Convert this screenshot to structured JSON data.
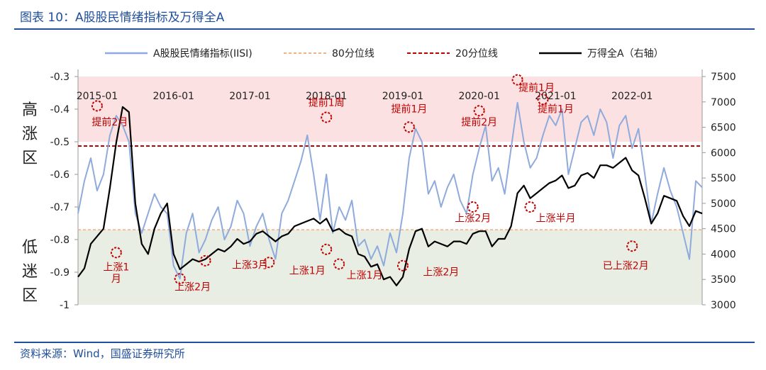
{
  "figure": {
    "title": "图表 10：A股股民情绪指标及万得全A",
    "source": "资料来源：Wind，国盛证券研究所"
  },
  "colors": {
    "iisi": "#8faadc",
    "threshold_80": "#f4b183",
    "threshold_20": "#c00000",
    "wind_a": "#000000",
    "high_zone": "#fbe1e1",
    "low_zone": "#e8eee4",
    "annotation": "#c00000",
    "title": "#1f4e9c"
  },
  "zones": {
    "high_label": "高涨区",
    "low_label": "低迷区",
    "high_range": [
      -0.5,
      -0.3
    ],
    "low_range": [
      -1.0,
      -0.77
    ]
  },
  "chart_data": {
    "type": "line",
    "legend": {
      "placement": "top",
      "entries": [
        "A股股民情绪指标(IISI)",
        "80分位线",
        "20分位线",
        "万得全A（右轴）"
      ]
    },
    "x_axis": {
      "range": [
        "2014-10",
        "2022-12"
      ],
      "tick_labels": [
        "2015-01",
        "2016-01",
        "2017-01",
        "2018-01",
        "2019-01",
        "2020-01",
        "2021-01",
        "2022-01"
      ]
    },
    "y_left": {
      "range": [
        -1.0,
        -0.3
      ],
      "ticks": [
        -1,
        -0.9,
        -0.8,
        -0.7,
        -0.6,
        -0.5,
        -0.4,
        -0.3
      ],
      "tick_labels": [
        "-1",
        "-0.9",
        "-0.8",
        "-0.7",
        "-0.6",
        "-0.5",
        "-0.4",
        "-0.3"
      ]
    },
    "y_right": {
      "range": [
        3000,
        7500
      ],
      "ticks": [
        3000,
        3500,
        4000,
        4500,
        5000,
        5500,
        6000,
        6500,
        7000,
        7500
      ],
      "tick_labels": [
        "3000",
        "3500",
        "4000",
        "4500",
        "5000",
        "5500",
        "6000",
        "6500",
        "7000",
        "7500"
      ]
    },
    "thresholds": {
      "p80": -0.77,
      "p20": -0.513
    },
    "series": [
      {
        "name": "A股股民情绪指标(IISI)",
        "axis": "left",
        "points": [
          [
            "2014-10",
            -0.72
          ],
          [
            "2014-11",
            -0.62
          ],
          [
            "2014-12",
            -0.55
          ],
          [
            "2015-01",
            -0.65
          ],
          [
            "2015-02",
            -0.6
          ],
          [
            "2015-03",
            -0.48
          ],
          [
            "2015-04",
            -0.42
          ],
          [
            "2015-05",
            -0.45
          ],
          [
            "2015-06",
            -0.5
          ],
          [
            "2015-07",
            -0.72
          ],
          [
            "2015-08",
            -0.78
          ],
          [
            "2015-09",
            -0.72
          ],
          [
            "2015-10",
            -0.66
          ],
          [
            "2015-11",
            -0.7
          ],
          [
            "2015-12",
            -0.72
          ],
          [
            "2016-01",
            -0.88
          ],
          [
            "2016-02",
            -0.92
          ],
          [
            "2016-03",
            -0.78
          ],
          [
            "2016-04",
            -0.72
          ],
          [
            "2016-05",
            -0.84
          ],
          [
            "2016-06",
            -0.8
          ],
          [
            "2016-07",
            -0.74
          ],
          [
            "2016-08",
            -0.7
          ],
          [
            "2016-09",
            -0.8
          ],
          [
            "2016-10",
            -0.76
          ],
          [
            "2016-11",
            -0.68
          ],
          [
            "2016-12",
            -0.72
          ],
          [
            "2017-01",
            -0.82
          ],
          [
            "2017-02",
            -0.76
          ],
          [
            "2017-03",
            -0.72
          ],
          [
            "2017-04",
            -0.8
          ],
          [
            "2017-05",
            -0.86
          ],
          [
            "2017-06",
            -0.72
          ],
          [
            "2017-07",
            -0.68
          ],
          [
            "2017-08",
            -0.62
          ],
          [
            "2017-09",
            -0.56
          ],
          [
            "2017-10",
            -0.48
          ],
          [
            "2017-11",
            -0.6
          ],
          [
            "2017-12",
            -0.74
          ],
          [
            "2018-01",
            -0.6
          ],
          [
            "2018-02",
            -0.78
          ],
          [
            "2018-03",
            -0.7
          ],
          [
            "2018-04",
            -0.74
          ],
          [
            "2018-05",
            -0.68
          ],
          [
            "2018-06",
            -0.82
          ],
          [
            "2018-07",
            -0.8
          ],
          [
            "2018-08",
            -0.86
          ],
          [
            "2018-09",
            -0.82
          ],
          [
            "2018-10",
            -0.88
          ],
          [
            "2018-11",
            -0.78
          ],
          [
            "2018-12",
            -0.84
          ],
          [
            "2019-01",
            -0.72
          ],
          [
            "2019-02",
            -0.55
          ],
          [
            "2019-03",
            -0.46
          ],
          [
            "2019-04",
            -0.5
          ],
          [
            "2019-05",
            -0.66
          ],
          [
            "2019-06",
            -0.62
          ],
          [
            "2019-07",
            -0.7
          ],
          [
            "2019-08",
            -0.64
          ],
          [
            "2019-09",
            -0.6
          ],
          [
            "2019-10",
            -0.68
          ],
          [
            "2019-11",
            -0.72
          ],
          [
            "2019-12",
            -0.6
          ],
          [
            "2020-01",
            -0.52
          ],
          [
            "2020-02",
            -0.45
          ],
          [
            "2020-03",
            -0.62
          ],
          [
            "2020-04",
            -0.58
          ],
          [
            "2020-05",
            -0.66
          ],
          [
            "2020-06",
            -0.52
          ],
          [
            "2020-07",
            -0.38
          ],
          [
            "2020-08",
            -0.5
          ],
          [
            "2020-09",
            -0.58
          ],
          [
            "2020-10",
            -0.55
          ],
          [
            "2020-11",
            -0.48
          ],
          [
            "2020-12",
            -0.42
          ],
          [
            "2021-01",
            -0.45
          ],
          [
            "2021-02",
            -0.4
          ],
          [
            "2021-03",
            -0.6
          ],
          [
            "2021-04",
            -0.52
          ],
          [
            "2021-05",
            -0.44
          ],
          [
            "2021-06",
            -0.42
          ],
          [
            "2021-07",
            -0.48
          ],
          [
            "2021-08",
            -0.4
          ],
          [
            "2021-09",
            -0.44
          ],
          [
            "2021-10",
            -0.55
          ],
          [
            "2021-11",
            -0.45
          ],
          [
            "2021-12",
            -0.42
          ],
          [
            "2022-01",
            -0.52
          ],
          [
            "2022-02",
            -0.46
          ],
          [
            "2022-03",
            -0.6
          ],
          [
            "2022-04",
            -0.75
          ],
          [
            "2022-05",
            -0.66
          ],
          [
            "2022-06",
            -0.58
          ],
          [
            "2022-07",
            -0.65
          ],
          [
            "2022-08",
            -0.7
          ],
          [
            "2022-09",
            -0.78
          ],
          [
            "2022-10",
            -0.86
          ],
          [
            "2022-11",
            -0.62
          ],
          [
            "2022-12",
            -0.64
          ]
        ]
      },
      {
        "name": "万得全A（右轴）",
        "axis": "right",
        "points": [
          [
            "2014-10",
            3550
          ],
          [
            "2014-11",
            3720
          ],
          [
            "2014-12",
            4200
          ],
          [
            "2015-01",
            4350
          ],
          [
            "2015-02",
            4500
          ],
          [
            "2015-03",
            5300
          ],
          [
            "2015-04",
            6200
          ],
          [
            "2015-05",
            6900
          ],
          [
            "2015-06",
            6800
          ],
          [
            "2015-07",
            5000
          ],
          [
            "2015-08",
            4200
          ],
          [
            "2015-09",
            4000
          ],
          [
            "2015-10",
            4500
          ],
          [
            "2015-11",
            4800
          ],
          [
            "2015-12",
            5000
          ],
          [
            "2016-01",
            4000
          ],
          [
            "2016-02",
            3700
          ],
          [
            "2016-03",
            3800
          ],
          [
            "2016-04",
            3900
          ],
          [
            "2016-05",
            3850
          ],
          [
            "2016-06",
            3900
          ],
          [
            "2016-07",
            4000
          ],
          [
            "2016-08",
            4100
          ],
          [
            "2016-09",
            4050
          ],
          [
            "2016-10",
            4150
          ],
          [
            "2016-11",
            4300
          ],
          [
            "2016-12",
            4200
          ],
          [
            "2017-01",
            4250
          ],
          [
            "2017-02",
            4400
          ],
          [
            "2017-03",
            4450
          ],
          [
            "2017-04",
            4350
          ],
          [
            "2017-05",
            4250
          ],
          [
            "2017-06",
            4350
          ],
          [
            "2017-07",
            4400
          ],
          [
            "2017-08",
            4550
          ],
          [
            "2017-09",
            4600
          ],
          [
            "2017-10",
            4650
          ],
          [
            "2017-11",
            4700
          ],
          [
            "2017-12",
            4600
          ],
          [
            "2018-01",
            4700
          ],
          [
            "2018-02",
            4450
          ],
          [
            "2018-03",
            4500
          ],
          [
            "2018-04",
            4400
          ],
          [
            "2018-05",
            4350
          ],
          [
            "2018-06",
            4000
          ],
          [
            "2018-07",
            3950
          ],
          [
            "2018-08",
            3750
          ],
          [
            "2018-09",
            3800
          ],
          [
            "2018-10",
            3500
          ],
          [
            "2018-11",
            3550
          ],
          [
            "2018-12",
            3380
          ],
          [
            "2019-01",
            3550
          ],
          [
            "2019-02",
            4100
          ],
          [
            "2019-03",
            4450
          ],
          [
            "2019-04",
            4500
          ],
          [
            "2019-05",
            4150
          ],
          [
            "2019-06",
            4250
          ],
          [
            "2019-07",
            4200
          ],
          [
            "2019-08",
            4150
          ],
          [
            "2019-09",
            4250
          ],
          [
            "2019-10",
            4250
          ],
          [
            "2019-11",
            4200
          ],
          [
            "2019-12",
            4400
          ],
          [
            "2020-01",
            4450
          ],
          [
            "2020-02",
            4450
          ],
          [
            "2020-03",
            4150
          ],
          [
            "2020-04",
            4300
          ],
          [
            "2020-05",
            4300
          ],
          [
            "2020-06",
            4550
          ],
          [
            "2020-07",
            5200
          ],
          [
            "2020-08",
            5350
          ],
          [
            "2020-09",
            5100
          ],
          [
            "2020-10",
            5200
          ],
          [
            "2020-11",
            5300
          ],
          [
            "2020-12",
            5400
          ],
          [
            "2021-01",
            5450
          ],
          [
            "2021-02",
            5550
          ],
          [
            "2021-03",
            5300
          ],
          [
            "2021-04",
            5350
          ],
          [
            "2021-05",
            5550
          ],
          [
            "2021-06",
            5600
          ],
          [
            "2021-07",
            5500
          ],
          [
            "2021-08",
            5750
          ],
          [
            "2021-09",
            5750
          ],
          [
            "2021-10",
            5700
          ],
          [
            "2021-11",
            5800
          ],
          [
            "2021-12",
            5900
          ],
          [
            "2022-01",
            5650
          ],
          [
            "2022-02",
            5550
          ],
          [
            "2022-03",
            5100
          ],
          [
            "2022-04",
            4600
          ],
          [
            "2022-05",
            4800
          ],
          [
            "2022-06",
            5150
          ],
          [
            "2022-07",
            5100
          ],
          [
            "2022-08",
            5050
          ],
          [
            "2022-09",
            4750
          ],
          [
            "2022-10",
            4550
          ],
          [
            "2022-11",
            4850
          ],
          [
            "2022-12",
            4800
          ]
        ]
      }
    ],
    "annotations": [
      {
        "text": "提前2月",
        "circle_at": [
          "2015-01",
          -0.39
        ],
        "label_at": [
          "2015-03",
          -0.45
        ]
      },
      {
        "text": "上涨1",
        "circle_at": [
          "2015-04",
          -0.84
        ],
        "label_at": [
          "2015-04",
          -0.895
        ]
      },
      {
        "text": "月",
        "circle_at": null,
        "label_at": [
          "2015-04",
          -0.93
        ]
      },
      {
        "text": "上涨2月",
        "circle_at": [
          "2016-02",
          -0.92
        ],
        "label_at": [
          "2016-04",
          -0.955
        ]
      },
      {
        "text": "上涨3月",
        "circle_at": [
          "2016-06",
          -0.865
        ],
        "label_at": [
          "2017-01",
          -0.888
        ]
      },
      {
        "text": "上涨1月",
        "circle_at": [
          "2017-04",
          -0.87
        ],
        "label_at": [
          "2017-10",
          -0.905
        ]
      },
      {
        "text": "上涨1月",
        "circle_at": [
          "2018-01",
          -0.83
        ],
        "label_at": [
          "2018-07",
          -0.92
        ]
      },
      {
        "text": "",
        "circle_at": [
          "2018-03",
          -0.875
        ],
        "label_at": null
      },
      {
        "text": "提前1周",
        "circle_at": [
          "2018-01",
          -0.425
        ],
        "label_at": [
          "2018-01",
          -0.39
        ]
      },
      {
        "text": "提前1月",
        "circle_at": [
          "2019-02",
          -0.455
        ],
        "label_at": [
          "2019-02",
          -0.41
        ]
      },
      {
        "text": "上涨2月",
        "circle_at": [
          "2019-01",
          -0.88
        ],
        "label_at": [
          "2019-07",
          -0.91
        ]
      },
      {
        "text": "提前2月",
        "circle_at": [
          "2020-01",
          -0.405
        ],
        "label_at": [
          "2020-01",
          -0.45
        ]
      },
      {
        "text": "上涨2月",
        "circle_at": [
          "2019-12",
          -0.7
        ],
        "label_at": [
          "2019-12",
          -0.745
        ]
      },
      {
        "text": "提前1月",
        "circle_at": [
          "2020-07",
          -0.31
        ],
        "label_at": [
          "2020-10",
          -0.345
        ]
      },
      {
        "text": "提前1月",
        "circle_at": [
          "2020-11",
          -0.37
        ],
        "label_at": [
          "2021-01",
          -0.41
        ]
      },
      {
        "text": "上涨半月",
        "circle_at": [
          "2020-09",
          -0.7
        ],
        "label_at": [
          "2021-01",
          -0.745
        ]
      },
      {
        "text": "已上涨2月",
        "circle_at": [
          "2022-01",
          -0.82
        ],
        "label_at": [
          "2021-12",
          -0.89
        ]
      }
    ]
  }
}
